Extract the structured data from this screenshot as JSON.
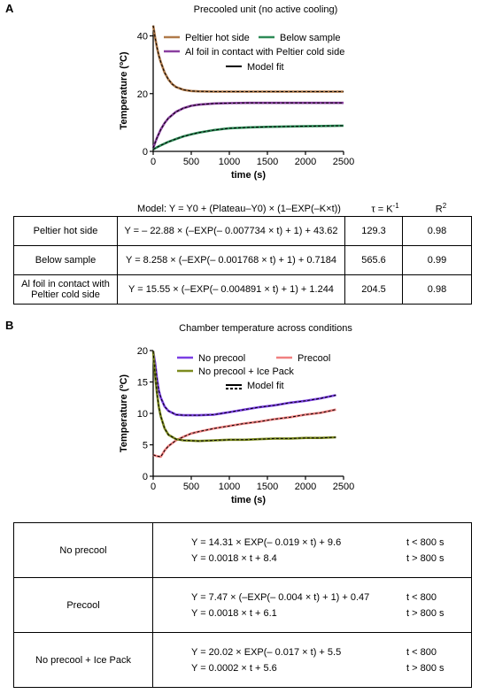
{
  "panels": [
    {
      "letter": "A",
      "table": {
        "model_header": "Model: Y = Y0 + (Plateau–Y0) × (1–EXP(–K×t))",
        "tau_header_base": "τ = K",
        "tau_header_sup": "-1",
        "r2_header_base": "R",
        "r2_header_sup": "2",
        "rows": [
          {
            "label": "Peltier hot side",
            "equation": "Y = – 22.88 × (–EXP(– 0.007734 × t) + 1) + 43.62",
            "tau": "129.3",
            "r2": "0.98"
          },
          {
            "label": "Below sample",
            "equation": "Y = 8.258 × (–EXP(– 0.001768 × t) + 1) + 0.7184",
            "tau": "565.6",
            "r2": "0.99"
          },
          {
            "label": "Al foil in contact with Peltier cold side",
            "equation": "Y = 15.55 × (–EXP(– 0.004891 × t) + 1) + 1.244",
            "tau": "204.5",
            "r2": "0.98"
          }
        ]
      }
    },
    {
      "letter": "B",
      "table": {
        "rows": [
          {
            "label": "No precool",
            "lines": [
              {
                "equation": "Y = 14.31 × EXP(– 0.019 × t) + 9.6",
                "condition": "t < 800 s"
              },
              {
                "equation": "Y = 0.0018 × t + 8.4",
                "condition": "t > 800 s"
              }
            ]
          },
          {
            "label": "Precool",
            "lines": [
              {
                "equation": "Y = 7.47 × (–EXP(– 0.004 × t) + 1) + 0.47",
                "condition": "t < 800"
              },
              {
                "equation": "Y = 0.0018 × t + 6.1",
                "condition": "t > 800 s"
              }
            ]
          },
          {
            "label": "No precool + Ice Pack",
            "lines": [
              {
                "equation": "Y = 20.02 × EXP(– 0.017 × t) + 5.5",
                "condition": "t < 800"
              },
              {
                "equation": "Y = 0.0002 × t + 5.6",
                "condition": "t > 800 s"
              }
            ]
          }
        ]
      }
    }
  ],
  "chart_data": [
    {
      "type": "line",
      "title": "Precooled unit (no active cooling)",
      "xlabel": "time (s)",
      "ylabel": "Temperature (ºC)",
      "xlim": [
        0,
        2500
      ],
      "ylim": [
        0,
        42
      ],
      "x_ticks": [
        0,
        500,
        1000,
        1500,
        2000,
        2500
      ],
      "y_ticks": [
        0,
        20,
        40
      ],
      "grid": false,
      "legend_placement": "top-right",
      "series": [
        {
          "name": "Peltier hot side",
          "color": "#b07a4a",
          "x": [
            0,
            25,
            50,
            75,
            100,
            150,
            200,
            250,
            300,
            400,
            500,
            600,
            800,
            1000,
            1250,
            1500,
            1750,
            2000,
            2250,
            2500
          ],
          "y": [
            43.6,
            39.4,
            36.0,
            33.2,
            30.9,
            27.3,
            24.9,
            23.3,
            22.3,
            21.3,
            20.9,
            20.8,
            20.7,
            20.7,
            20.7,
            20.7,
            20.7,
            20.7,
            20.7,
            20.7
          ]
        },
        {
          "name": "Below sample",
          "color": "#2e8b57",
          "x": [
            0,
            50,
            100,
            200,
            300,
            400,
            500,
            600,
            800,
            1000,
            1250,
            1500,
            1750,
            2000,
            2250,
            2500
          ],
          "y": [
            0.7,
            1.4,
            2.1,
            3.3,
            4.3,
            5.2,
            5.9,
            6.5,
            7.4,
            8.0,
            8.3,
            8.5,
            8.6,
            8.7,
            8.8,
            8.9
          ]
        },
        {
          "name": "Al foil in contact with Peltier cold side",
          "color": "#8a3fa0",
          "x": [
            0,
            25,
            50,
            100,
            150,
            200,
            300,
            400,
            500,
            600,
            800,
            1000,
            1250,
            1500,
            1750,
            2000,
            2250,
            2500
          ],
          "y": [
            1.2,
            3.0,
            4.7,
            7.6,
            9.8,
            11.5,
            13.7,
            15.0,
            15.8,
            16.2,
            16.6,
            16.7,
            16.8,
            16.8,
            16.8,
            16.8,
            16.8,
            16.8
          ]
        }
      ],
      "legend": [
        {
          "label": "Peltier hot side",
          "color": "#b07a4a"
        },
        {
          "label": "Below sample",
          "color": "#2e8b57"
        },
        {
          "label": "Al foil in contact with Peltier cold side",
          "color": "#8a3fa0"
        },
        {
          "label": "Model fit",
          "color": "#000000"
        }
      ]
    },
    {
      "type": "line",
      "title": "Chamber temperature across conditions",
      "xlabel": "time (s)",
      "ylabel": "Temperature (ºC)",
      "xlim": [
        0,
        2500
      ],
      "ylim": [
        0,
        20
      ],
      "x_ticks": [
        0,
        500,
        1000,
        1500,
        2000,
        2500
      ],
      "y_ticks": [
        0,
        5,
        10,
        15,
        20
      ],
      "grid": false,
      "legend_placement": "top-right",
      "series": [
        {
          "name": "No precool",
          "color": "#7b3fe4",
          "x": [
            0,
            25,
            50,
            75,
            100,
            150,
            200,
            300,
            400,
            600,
            800,
            1000,
            1200,
            1400,
            1600,
            1800,
            2000,
            2200,
            2400
          ],
          "y": [
            19.9,
            18.0,
            15.5,
            13.6,
            12.5,
            11.1,
            10.4,
            9.8,
            9.7,
            9.7,
            9.8,
            10.2,
            10.6,
            11.0,
            11.3,
            11.7,
            12.0,
            12.4,
            12.9
          ]
        },
        {
          "name": "Precool",
          "color": "#f08080",
          "x": [
            0,
            50,
            100,
            150,
            200,
            300,
            400,
            500,
            600,
            800,
            1000,
            1200,
            1400,
            1600,
            1800,
            2000,
            2200,
            2400
          ],
          "y": [
            3.4,
            3.2,
            3.1,
            4.1,
            4.8,
            5.7,
            6.3,
            6.8,
            7.1,
            7.6,
            8.0,
            8.4,
            8.7,
            9.1,
            9.4,
            9.8,
            10.1,
            10.6
          ]
        },
        {
          "name": "No precool + Ice Pack",
          "color": "#7d8b1f",
          "x": [
            0,
            25,
            50,
            75,
            100,
            150,
            200,
            300,
            400,
            600,
            800,
            1000,
            1200,
            1400,
            1600,
            1800,
            2000,
            2200,
            2400
          ],
          "y": [
            19.9,
            16.0,
            13.2,
            11.0,
            9.5,
            7.6,
            6.6,
            5.9,
            5.7,
            5.6,
            5.7,
            5.8,
            5.8,
            5.9,
            6.0,
            6.0,
            6.1,
            6.1,
            6.2
          ]
        }
      ],
      "legend": [
        {
          "label": "No precool",
          "color": "#7b3fe4"
        },
        {
          "label": "Precool",
          "color": "#f08080"
        },
        {
          "label": "No precool + Ice Pack",
          "color": "#7d8b1f"
        },
        {
          "label": "Model fit",
          "color": "#000000"
        }
      ]
    }
  ]
}
